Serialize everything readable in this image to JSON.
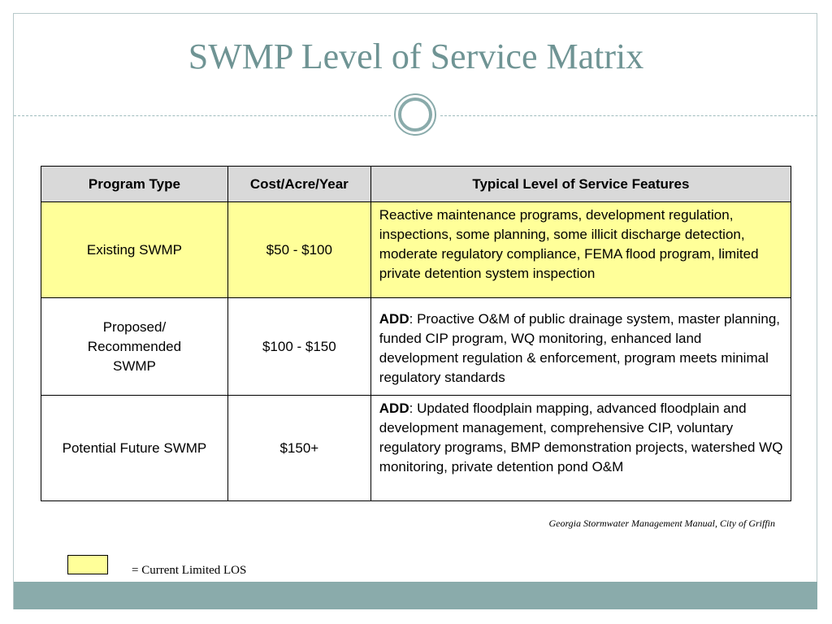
{
  "slide": {
    "title": "SWMP Level of Service Matrix"
  },
  "table": {
    "headers": [
      "Program Type",
      "Cost/Acre/Year",
      "Typical Level of Service Features"
    ],
    "rows": [
      {
        "program": "Existing SWMP",
        "cost": "$50 - $100",
        "prefix": "",
        "features": "Reactive maintenance programs, development regulation, inspections, some planning, some illicit discharge detection, moderate regulatory compliance, FEMA flood program, limited private detention system inspection",
        "highlighted": true
      },
      {
        "program": "Proposed/ Recommended SWMP",
        "cost": "$100 - $150",
        "prefix": "ADD",
        "features": ":  Proactive O&M of public drainage system, master planning, funded CIP program, WQ monitoring, enhanced land development regulation & enforcement, program meets minimal regulatory standards",
        "highlighted": false
      },
      {
        "program": "Potential Future SWMP",
        "cost": "$150+",
        "prefix": "ADD",
        "features": ":  Updated floodplain mapping, advanced floodplain and development management, comprehensive CIP, voluntary regulatory programs, BMP demonstration projects, watershed WQ monitoring, private detention pond O&M",
        "highlighted": false
      }
    ]
  },
  "source": "Georgia Stormwater Management Manual, City of Griffin",
  "legend": {
    "label": "= Current Limited LOS"
  },
  "colors": {
    "title": "#6f9494",
    "highlight": "#ffff99",
    "header_bg": "#d9d9d9",
    "footer_bar": "#8aabab",
    "frame": "#b8c9ca"
  },
  "icons": {
    "ornament": "double-ring-icon"
  }
}
